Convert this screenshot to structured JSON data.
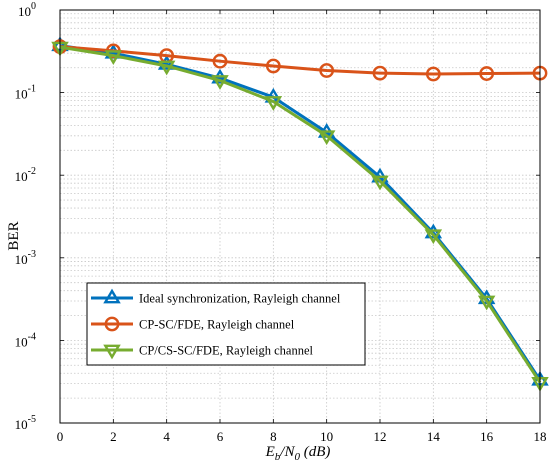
{
  "chart_data": {
    "type": "line",
    "xlabel_main": "E",
    "xlabel_sub1": "b",
    "xlabel_mid": "/N",
    "xlabel_sub2": "0",
    "xlabel_unit": " (dB)",
    "ylabel": "BER",
    "x": [
      0,
      2,
      4,
      6,
      8,
      10,
      12,
      14,
      16,
      18
    ],
    "xlim": [
      0,
      18
    ],
    "ylim": [
      1e-05,
      1
    ],
    "yscale": "log",
    "grid": true,
    "legend_position": "bottom-left",
    "x_ticks": [
      "0",
      "2",
      "4",
      "6",
      "8",
      "10",
      "12",
      "14",
      "16",
      "18"
    ],
    "y_ticks": [
      {
        "exp": -5,
        "base": "10",
        "sup": "-5"
      },
      {
        "exp": -4,
        "base": "10",
        "sup": "-4"
      },
      {
        "exp": -3,
        "base": "10",
        "sup": "-3"
      },
      {
        "exp": -2,
        "base": "10",
        "sup": "-2"
      },
      {
        "exp": -1,
        "base": "10",
        "sup": "-1"
      },
      {
        "exp": 0,
        "base": "10",
        "sup": "0"
      }
    ],
    "series": [
      {
        "name": "Ideal synchronization,  Rayleigh channel",
        "color": "#0072BD",
        "marker": "triangle-up",
        "values": [
          0.37,
          0.3,
          0.22,
          0.15,
          0.088,
          0.033,
          0.0095,
          0.002,
          0.00032,
          3.3e-05
        ]
      },
      {
        "name": "CP-SC/FDE,  Rayleigh channel",
        "color": "#D95319",
        "marker": "circle",
        "values": [
          0.36,
          0.32,
          0.28,
          0.24,
          0.21,
          0.185,
          0.172,
          0.168,
          0.17,
          0.172
        ]
      },
      {
        "name": "CP/CS-SC/FDE,  Rayleigh channel",
        "color": "#77AC30",
        "marker": "triangle-down",
        "values": [
          0.355,
          0.28,
          0.21,
          0.14,
          0.078,
          0.03,
          0.0085,
          0.0019,
          0.0003,
          3.1e-05
        ]
      }
    ]
  }
}
